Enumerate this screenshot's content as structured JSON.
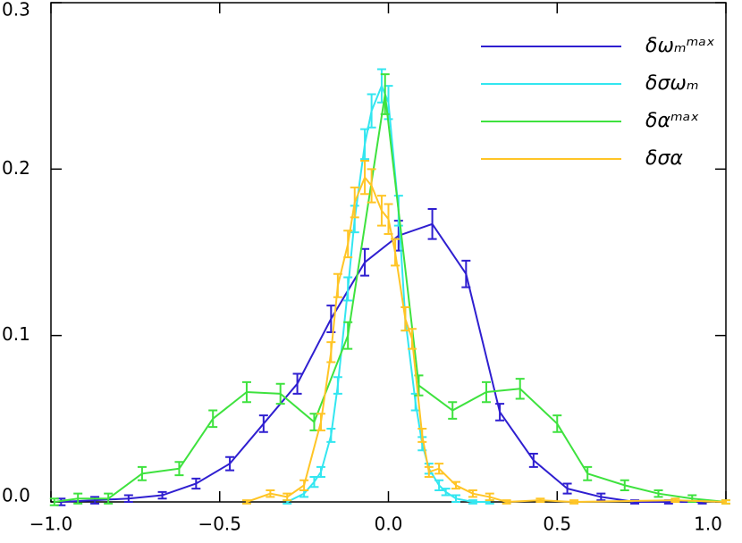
{
  "chart_data": {
    "type": "line",
    "xlim": [
      -1,
      1
    ],
    "ylim": [
      0,
      0.3
    ],
    "xticks": [
      {
        "value": -1,
        "label": "−1.0"
      },
      {
        "value": -0.5,
        "label": "−0.5"
      },
      {
        "value": 0,
        "label": "0.0"
      },
      0.5,
      {
        "value": 1,
        "label": "1.0"
      }
    ],
    "yticks": [
      {
        "value": 0,
        "label": "0.0"
      },
      0.1,
      0.2,
      0.3
    ],
    "legend": "upper right",
    "series": [
      {
        "name": "δωₘᵐᵃˣ",
        "color": "#2f1fd0",
        "x": [
          -0.97,
          -0.87,
          -0.77,
          -0.67,
          -0.57,
          -0.47,
          -0.37,
          -0.27,
          -0.17,
          -0.07,
          0.03,
          0.13,
          0.23,
          0.33,
          0.43,
          0.53,
          0.63,
          0.73,
          0.83,
          0.93
        ],
        "values": [
          0.0,
          0.001,
          0.002,
          0.004,
          0.011,
          0.023,
          0.047,
          0.071,
          0.11,
          0.144,
          0.16,
          0.167,
          0.137,
          0.054,
          0.025,
          0.008,
          0.003,
          0.0,
          0.0,
          0.0
        ],
        "errors": [
          0.002,
          0.002,
          0.002,
          0.002,
          0.003,
          0.004,
          0.005,
          0.006,
          0.008,
          0.008,
          0.009,
          0.009,
          0.008,
          0.005,
          0.004,
          0.003,
          0.002,
          0.001,
          0.001,
          0.001
        ]
      },
      {
        "name": "δσωₘ",
        "color": "#33e6f0",
        "x": [
          -0.3,
          -0.25,
          -0.22,
          -0.2,
          -0.17,
          -0.15,
          -0.12,
          -0.1,
          -0.07,
          -0.05,
          -0.02,
          0.0,
          0.03,
          0.05,
          0.08,
          0.1,
          0.12,
          0.15,
          0.17,
          0.2,
          0.25,
          0.3
        ],
        "values": [
          0.0,
          0.005,
          0.012,
          0.018,
          0.04,
          0.07,
          0.128,
          0.17,
          0.215,
          0.235,
          0.25,
          0.24,
          0.175,
          0.11,
          0.06,
          0.035,
          0.02,
          0.01,
          0.006,
          0.002,
          0.0,
          0.0
        ],
        "errors": [
          0.001,
          0.002,
          0.003,
          0.003,
          0.004,
          0.005,
          0.007,
          0.008,
          0.009,
          0.01,
          0.01,
          0.01,
          0.009,
          0.007,
          0.005,
          0.004,
          0.003,
          0.003,
          0.002,
          0.002,
          0.001,
          0.001
        ]
      },
      {
        "name": "δαᵐᵃˣ",
        "color": "#3ee23e",
        "x": [
          -0.99,
          -0.92,
          -0.83,
          -0.73,
          -0.62,
          -0.52,
          -0.42,
          -0.32,
          -0.22,
          -0.12,
          -0.01,
          0.09,
          0.19,
          0.29,
          0.39,
          0.5,
          0.59,
          0.7,
          0.8,
          0.9,
          1.0
        ],
        "values": [
          0.0,
          0.002,
          0.002,
          0.017,
          0.02,
          0.05,
          0.066,
          0.065,
          0.048,
          0.1,
          0.245,
          0.07,
          0.055,
          0.066,
          0.068,
          0.047,
          0.017,
          0.01,
          0.005,
          0.002,
          0.0
        ],
        "errors": [
          0.002,
          0.003,
          0.003,
          0.004,
          0.004,
          0.005,
          0.006,
          0.006,
          0.005,
          0.008,
          0.012,
          0.006,
          0.005,
          0.006,
          0.006,
          0.005,
          0.004,
          0.003,
          0.002,
          0.002,
          0.001
        ]
      },
      {
        "name": "δσα",
        "color": "#ffc526",
        "x": [
          -0.42,
          -0.35,
          -0.3,
          -0.25,
          -0.2,
          -0.17,
          -0.15,
          -0.12,
          -0.1,
          -0.07,
          -0.05,
          -0.02,
          0.0,
          0.02,
          0.05,
          0.07,
          0.1,
          0.12,
          0.15,
          0.2,
          0.25,
          0.3,
          0.35,
          0.45,
          0.55,
          0.85,
          1.0
        ],
        "values": [
          0.0,
          0.005,
          0.003,
          0.01,
          0.048,
          0.09,
          0.13,
          0.155,
          0.18,
          0.195,
          0.19,
          0.175,
          0.17,
          0.15,
          0.11,
          0.098,
          0.04,
          0.018,
          0.02,
          0.01,
          0.005,
          0.003,
          0.0,
          0.001,
          0.0,
          0.001,
          0.0
        ],
        "errors": [
          0.001,
          0.002,
          0.002,
          0.003,
          0.005,
          0.006,
          0.007,
          0.008,
          0.009,
          0.01,
          0.01,
          0.009,
          0.009,
          0.008,
          0.007,
          0.006,
          0.004,
          0.003,
          0.003,
          0.002,
          0.002,
          0.002,
          0.001,
          0.001,
          0.001,
          0.001,
          0.001
        ]
      }
    ]
  }
}
